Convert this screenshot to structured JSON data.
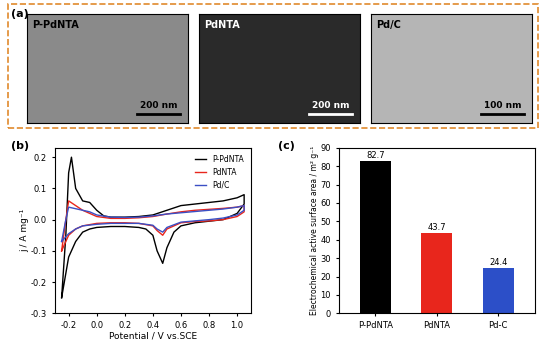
{
  "panel_labels": [
    "(a)",
    "(b)",
    "(c)"
  ],
  "images": [
    {
      "label": "P-PdNTA",
      "scale_bar": "200 nm"
    },
    {
      "label": "PdNTA",
      "scale_bar": "200 nm"
    },
    {
      "label": "Pd/C",
      "scale_bar": "100 nm"
    }
  ],
  "chart_data": [
    {
      "type": "line",
      "x_label": "Potential / V vs.SCE",
      "y_label": "j / A mg⁻¹",
      "xlim": [
        -0.3,
        1.1
      ],
      "xticks": [
        -0.2,
        0.0,
        0.2,
        0.4,
        0.6,
        0.8,
        1.0
      ],
      "ylim": [
        -0.3,
        0.23
      ],
      "yticks": [
        -0.3,
        -0.2,
        -0.1,
        0.0,
        0.1,
        0.2
      ],
      "legend": "upper right",
      "series": [
        {
          "name": "P-PdNTA",
          "color": "#000000",
          "x": [
            -0.25,
            -0.22,
            -0.2,
            -0.18,
            -0.15,
            -0.1,
            -0.05,
            0.0,
            0.05,
            0.1,
            0.2,
            0.3,
            0.4,
            0.5,
            0.6,
            0.7,
            0.8,
            0.9,
            1.0,
            1.05,
            1.05,
            1.0,
            0.9,
            0.8,
            0.7,
            0.6,
            0.55,
            0.5,
            0.47,
            0.43,
            0.4,
            0.35,
            0.3,
            0.2,
            0.1,
            0.0,
            -0.05,
            -0.1,
            -0.15,
            -0.2,
            -0.25
          ],
          "values": [
            -0.25,
            -0.05,
            0.15,
            0.2,
            0.1,
            0.06,
            0.055,
            0.03,
            0.012,
            0.008,
            0.008,
            0.01,
            0.015,
            0.03,
            0.045,
            0.05,
            0.055,
            0.06,
            0.07,
            0.08,
            0.05,
            0.02,
            0.0,
            -0.005,
            -0.01,
            -0.02,
            -0.04,
            -0.09,
            -0.14,
            -0.1,
            -0.05,
            -0.03,
            -0.025,
            -0.022,
            -0.022,
            -0.025,
            -0.03,
            -0.04,
            -0.07,
            -0.12,
            -0.25
          ]
        },
        {
          "name": "PdNTA",
          "color": "#e8261c",
          "x": [
            -0.25,
            -0.22,
            -0.2,
            -0.15,
            -0.1,
            -0.05,
            0.0,
            0.1,
            0.2,
            0.3,
            0.4,
            0.5,
            0.6,
            0.7,
            0.8,
            0.9,
            1.0,
            1.05,
            1.05,
            1.0,
            0.9,
            0.8,
            0.7,
            0.6,
            0.5,
            0.47,
            0.43,
            0.4,
            0.3,
            0.2,
            0.1,
            0.0,
            -0.1,
            -0.15,
            -0.2,
            -0.25
          ],
          "values": [
            -0.1,
            0.0,
            0.06,
            0.045,
            0.03,
            0.02,
            0.01,
            0.004,
            0.004,
            0.006,
            0.01,
            0.018,
            0.025,
            0.03,
            0.033,
            0.036,
            0.04,
            0.045,
            0.025,
            0.01,
            0.0,
            -0.004,
            -0.006,
            -0.01,
            -0.03,
            -0.05,
            -0.035,
            -0.02,
            -0.012,
            -0.01,
            -0.01,
            -0.012,
            -0.02,
            -0.03,
            -0.05,
            -0.1
          ]
        },
        {
          "name": "Pd/C",
          "color": "#3b4fc4",
          "x": [
            -0.25,
            -0.22,
            -0.2,
            -0.15,
            -0.1,
            -0.05,
            0.0,
            0.1,
            0.2,
            0.3,
            0.4,
            0.5,
            0.6,
            0.7,
            0.8,
            0.9,
            1.0,
            1.05,
            1.05,
            1.0,
            0.9,
            0.8,
            0.7,
            0.6,
            0.5,
            0.47,
            0.43,
            0.4,
            0.3,
            0.2,
            0.1,
            0.0,
            -0.1,
            -0.15,
            -0.2,
            -0.25
          ],
          "values": [
            -0.07,
            0.0,
            0.04,
            0.035,
            0.03,
            0.025,
            0.015,
            0.008,
            0.007,
            0.008,
            0.012,
            0.018,
            0.022,
            0.026,
            0.03,
            0.034,
            0.04,
            0.045,
            0.03,
            0.015,
            0.005,
            0.0,
            -0.004,
            -0.008,
            -0.025,
            -0.04,
            -0.03,
            -0.018,
            -0.012,
            -0.012,
            -0.012,
            -0.015,
            -0.02,
            -0.03,
            -0.045,
            -0.07
          ]
        }
      ]
    },
    {
      "type": "bar",
      "y_label": "Electrochemical active surface area / m² g⁻¹",
      "categories": [
        "P-PdNTA",
        "PdNTA",
        "Pd-C"
      ],
      "values": [
        82.7,
        43.7,
        24.4
      ],
      "colors": [
        "#000000",
        "#e8261c",
        "#2c4fc8"
      ],
      "ylim": [
        0,
        90
      ],
      "yticks": [
        0,
        10,
        20,
        30,
        40,
        50,
        60,
        70,
        80,
        90
      ],
      "data_labels": true
    }
  ]
}
